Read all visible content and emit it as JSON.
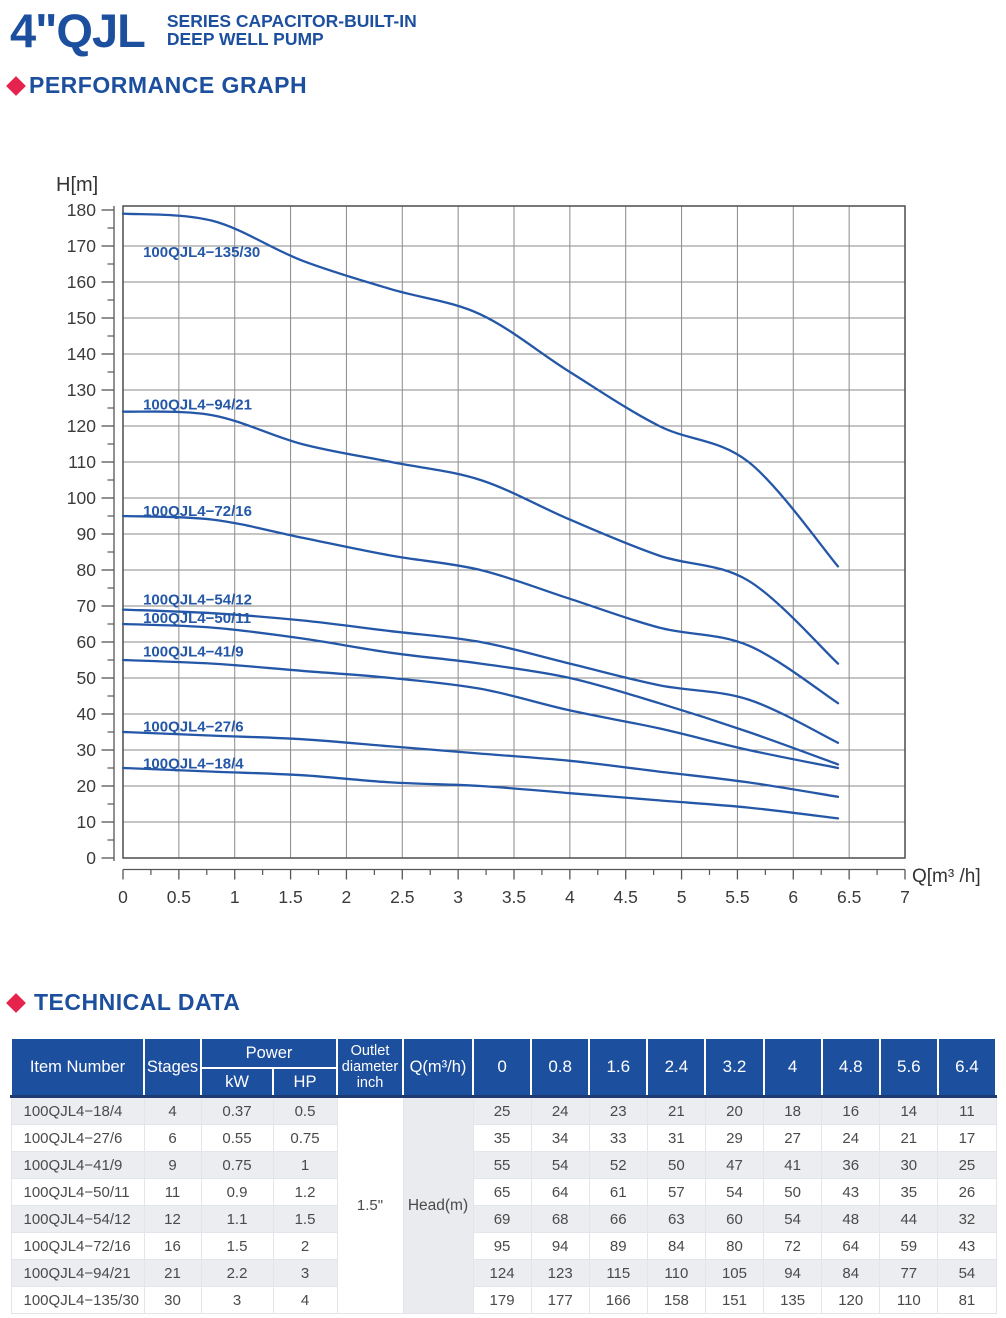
{
  "header": {
    "title": "4\"QJL",
    "subtitle_line1": "SERIES CAPACITOR-BUILT-IN",
    "subtitle_line2": "DEEP WELL PUMP"
  },
  "sections": {
    "performance_graph": "PERFORMANCE GRAPH",
    "technical_data": "TECHNICAL DATA"
  },
  "chart_data": {
    "type": "line",
    "title": "",
    "ylabel": "H[m]",
    "xlabel": "Q[m³ /h]",
    "xlim": [
      0,
      7
    ],
    "ylim": [
      0,
      181
    ],
    "grid": true,
    "legend_position": "inline-curve-labels",
    "x_tick_labels": [
      "0",
      "0.5",
      "1",
      "1.5",
      "2",
      "2.5",
      "3",
      "3.5",
      "4",
      "4.5",
      "5",
      "5.5",
      "6",
      "6.5",
      "7"
    ],
    "y_tick_labels": [
      "0",
      "10",
      "20",
      "30",
      "40",
      "50",
      "60",
      "70",
      "80",
      "90",
      "100",
      "110",
      "120",
      "130",
      "140",
      "150",
      "160",
      "170",
      "180"
    ],
    "x_minor_tick_step": 0.25,
    "y_minor_tick_step": 5,
    "x": [
      0,
      0.8,
      1.6,
      2.4,
      3.2,
      4,
      4.8,
      5.6,
      6.4
    ],
    "series": [
      {
        "name": "100QJL4−135/30",
        "values": [
          179,
          177,
          166,
          158,
          151,
          135,
          120,
          110,
          81
        ],
        "label_q": 0.18,
        "label_h": 167.0
      },
      {
        "name": "100QJL4−94/21",
        "values": [
          124,
          123,
          115,
          110,
          105,
          94,
          84,
          77,
          54
        ],
        "label_q": 0.18,
        "label_h": 124.6
      },
      {
        "name": "100QJL4−72/16",
        "values": [
          95,
          94,
          89,
          84,
          80,
          72,
          64,
          59,
          43
        ],
        "label_q": 0.18,
        "label_h": 95.0
      },
      {
        "name": "100QJL4−54/12",
        "values": [
          69,
          68,
          66,
          63,
          60,
          54,
          48,
          44,
          32
        ],
        "label_q": 0.18,
        "label_h": 70.4
      },
      {
        "name": "100QJL4−50/11",
        "values": [
          65,
          64,
          61,
          57,
          54,
          50,
          43,
          35,
          26
        ],
        "label_q": 0.18,
        "label_h": 65.3
      },
      {
        "name": "100QJL4−41/9",
        "values": [
          55,
          54,
          52,
          50,
          47,
          41,
          36,
          30,
          25
        ],
        "label_q": 0.18,
        "label_h": 56.0
      },
      {
        "name": "100QJL4−27/6",
        "values": [
          35,
          34,
          33,
          31,
          29,
          27,
          24,
          21,
          17
        ],
        "label_q": 0.18,
        "label_h": 35.1
      },
      {
        "name": "100QJL4−18/4",
        "values": [
          25,
          24,
          23,
          21,
          20,
          18,
          16,
          14,
          11
        ],
        "label_q": 0.18,
        "label_h": 24.9
      }
    ]
  },
  "table": {
    "header": {
      "item_number": "Item Number",
      "stages": "Stages",
      "power": "Power",
      "kw": "kW",
      "hp": "HP",
      "outlet": "Outlet\ndiameter\ninch",
      "q": "Q(m³/h)"
    },
    "q_columns": [
      "0",
      "0.8",
      "1.6",
      "2.4",
      "3.2",
      "4",
      "4.8",
      "5.6",
      "6.4"
    ],
    "outlet_value": "1.5\"",
    "head_label": "Head(m)",
    "rows": [
      {
        "item": "100QJL4−18/4",
        "stages": "4",
        "kw": "0.37",
        "hp": "0.5",
        "head": [
          "25",
          "24",
          "23",
          "21",
          "20",
          "18",
          "16",
          "14",
          "11"
        ]
      },
      {
        "item": "100QJL4−27/6",
        "stages": "6",
        "kw": "0.55",
        "hp": "0.75",
        "head": [
          "35",
          "34",
          "33",
          "31",
          "29",
          "27",
          "24",
          "21",
          "17"
        ]
      },
      {
        "item": "100QJL4−41/9",
        "stages": "9",
        "kw": "0.75",
        "hp": "1",
        "head": [
          "55",
          "54",
          "52",
          "50",
          "47",
          "41",
          "36",
          "30",
          "25"
        ]
      },
      {
        "item": "100QJL4−50/11",
        "stages": "11",
        "kw": "0.9",
        "hp": "1.2",
        "head": [
          "65",
          "64",
          "61",
          "57",
          "54",
          "50",
          "43",
          "35",
          "26"
        ]
      },
      {
        "item": "100QJL4−54/12",
        "stages": "12",
        "kw": "1.1",
        "hp": "1.5",
        "head": [
          "69",
          "68",
          "66",
          "63",
          "60",
          "54",
          "48",
          "44",
          "32"
        ]
      },
      {
        "item": "100QJL4−72/16",
        "stages": "16",
        "kw": "1.5",
        "hp": "2",
        "head": [
          "95",
          "94",
          "89",
          "84",
          "80",
          "72",
          "64",
          "59",
          "43"
        ]
      },
      {
        "item": "100QJL4−94/21",
        "stages": "21",
        "kw": "2.2",
        "hp": "3",
        "head": [
          "124",
          "123",
          "115",
          "110",
          "105",
          "94",
          "84",
          "77",
          "54"
        ]
      },
      {
        "item": "100QJL4−135/30",
        "stages": "30",
        "kw": "3",
        "hp": "4",
        "head": [
          "179",
          "177",
          "166",
          "158",
          "151",
          "135",
          "120",
          "110",
          "81"
        ]
      }
    ]
  },
  "colors": {
    "brand_blue": "#1d4f9f",
    "curve_blue": "#2457a7",
    "accent_red": "#e5234d",
    "grid_gray": "#8a8a8a",
    "frame_gray": "#565656",
    "axis_text": "#3b3b3b",
    "row_stripe": "#ebedf0",
    "header_divider": "#1e3a70"
  }
}
